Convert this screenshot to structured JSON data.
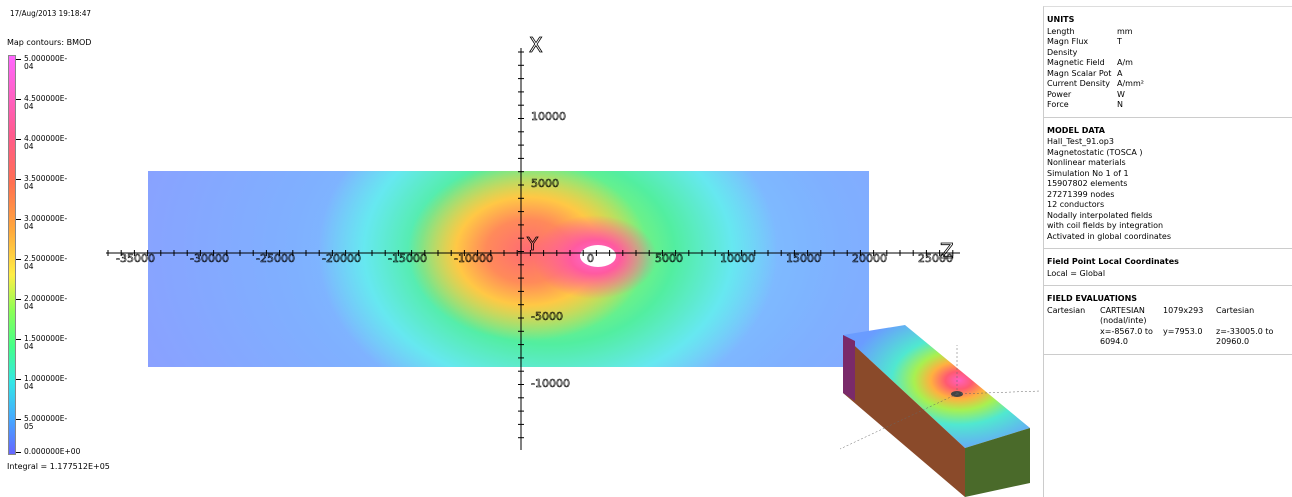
{
  "timestamp": "17/Aug/2013 19:18:47",
  "legend": {
    "title": "Map contours: BMOD",
    "labels": [
      "5.000000E-04",
      "4.500000E-04",
      "4.000000E-04",
      "3.500000E-04",
      "3.000000E-04",
      "2.500000E-04",
      "2.000000E-04",
      "1.500000E-04",
      "1.000000E-04",
      "5.000000E-05",
      "0.000000E+00"
    ],
    "integral": "Integral = 1.177512E+05",
    "colors": [
      "#ff66ff",
      "#ff5a8c",
      "#ff7050",
      "#ffaa3c",
      "#ffee45",
      "#8cff55",
      "#44ff88",
      "#33e6e6",
      "#44aaff",
      "#6666ff"
    ]
  },
  "axes": {
    "vertical_axis_label": "X",
    "horizontal_axis_label": "Z",
    "origin_label": "Y",
    "horizontal_ticks": [
      "-35000",
      "-30000",
      "-25000",
      "-20000",
      "-15000",
      "-10000",
      "0",
      "5000",
      "10000",
      "15000",
      "20000",
      "25000"
    ],
    "vertical_ticks": [
      "10000",
      "5000",
      "-5000",
      "-10000"
    ]
  },
  "units": {
    "heading": "UNITS",
    "rows": [
      {
        "k": "Length",
        "v": "mm"
      },
      {
        "k": "Magn Flux Density",
        "v": "T"
      },
      {
        "k": "Magnetic Field",
        "v": "A/m"
      },
      {
        "k": "Magn Scalar Pot",
        "v": "A"
      },
      {
        "k": "Current Density",
        "v": "A/mm²"
      },
      {
        "k": "Power",
        "v": "W"
      },
      {
        "k": "Force",
        "v": "N"
      }
    ]
  },
  "model_data": {
    "heading": "MODEL DATA",
    "lines": [
      "Hall_Test_91.op3",
      "Magnetostatic (TOSCA )",
      "Nonlinear materials",
      "Simulation No 1 of 1",
      "15907802 elements",
      "27271399 nodes",
      "12 conductors",
      "Nodally interpolated fields",
      "with coil fields by integration",
      "Activated in global coordinates"
    ]
  },
  "local_coords": {
    "heading": "Field Point Local Coordinates",
    "value": "Local = Global"
  },
  "field_evaluations": {
    "heading": "FIELD EVALUATIONS",
    "c1": "Cartesian",
    "c2": "CARTESIAN (nodal/inte)",
    "c3": "1079x293",
    "c4": "Cartesian",
    "r2c2": "x=-8567.0 to 6094.0",
    "r2c3": "y=7953.0",
    "r2c4": "z=-33005.0 to 20960.0"
  }
}
